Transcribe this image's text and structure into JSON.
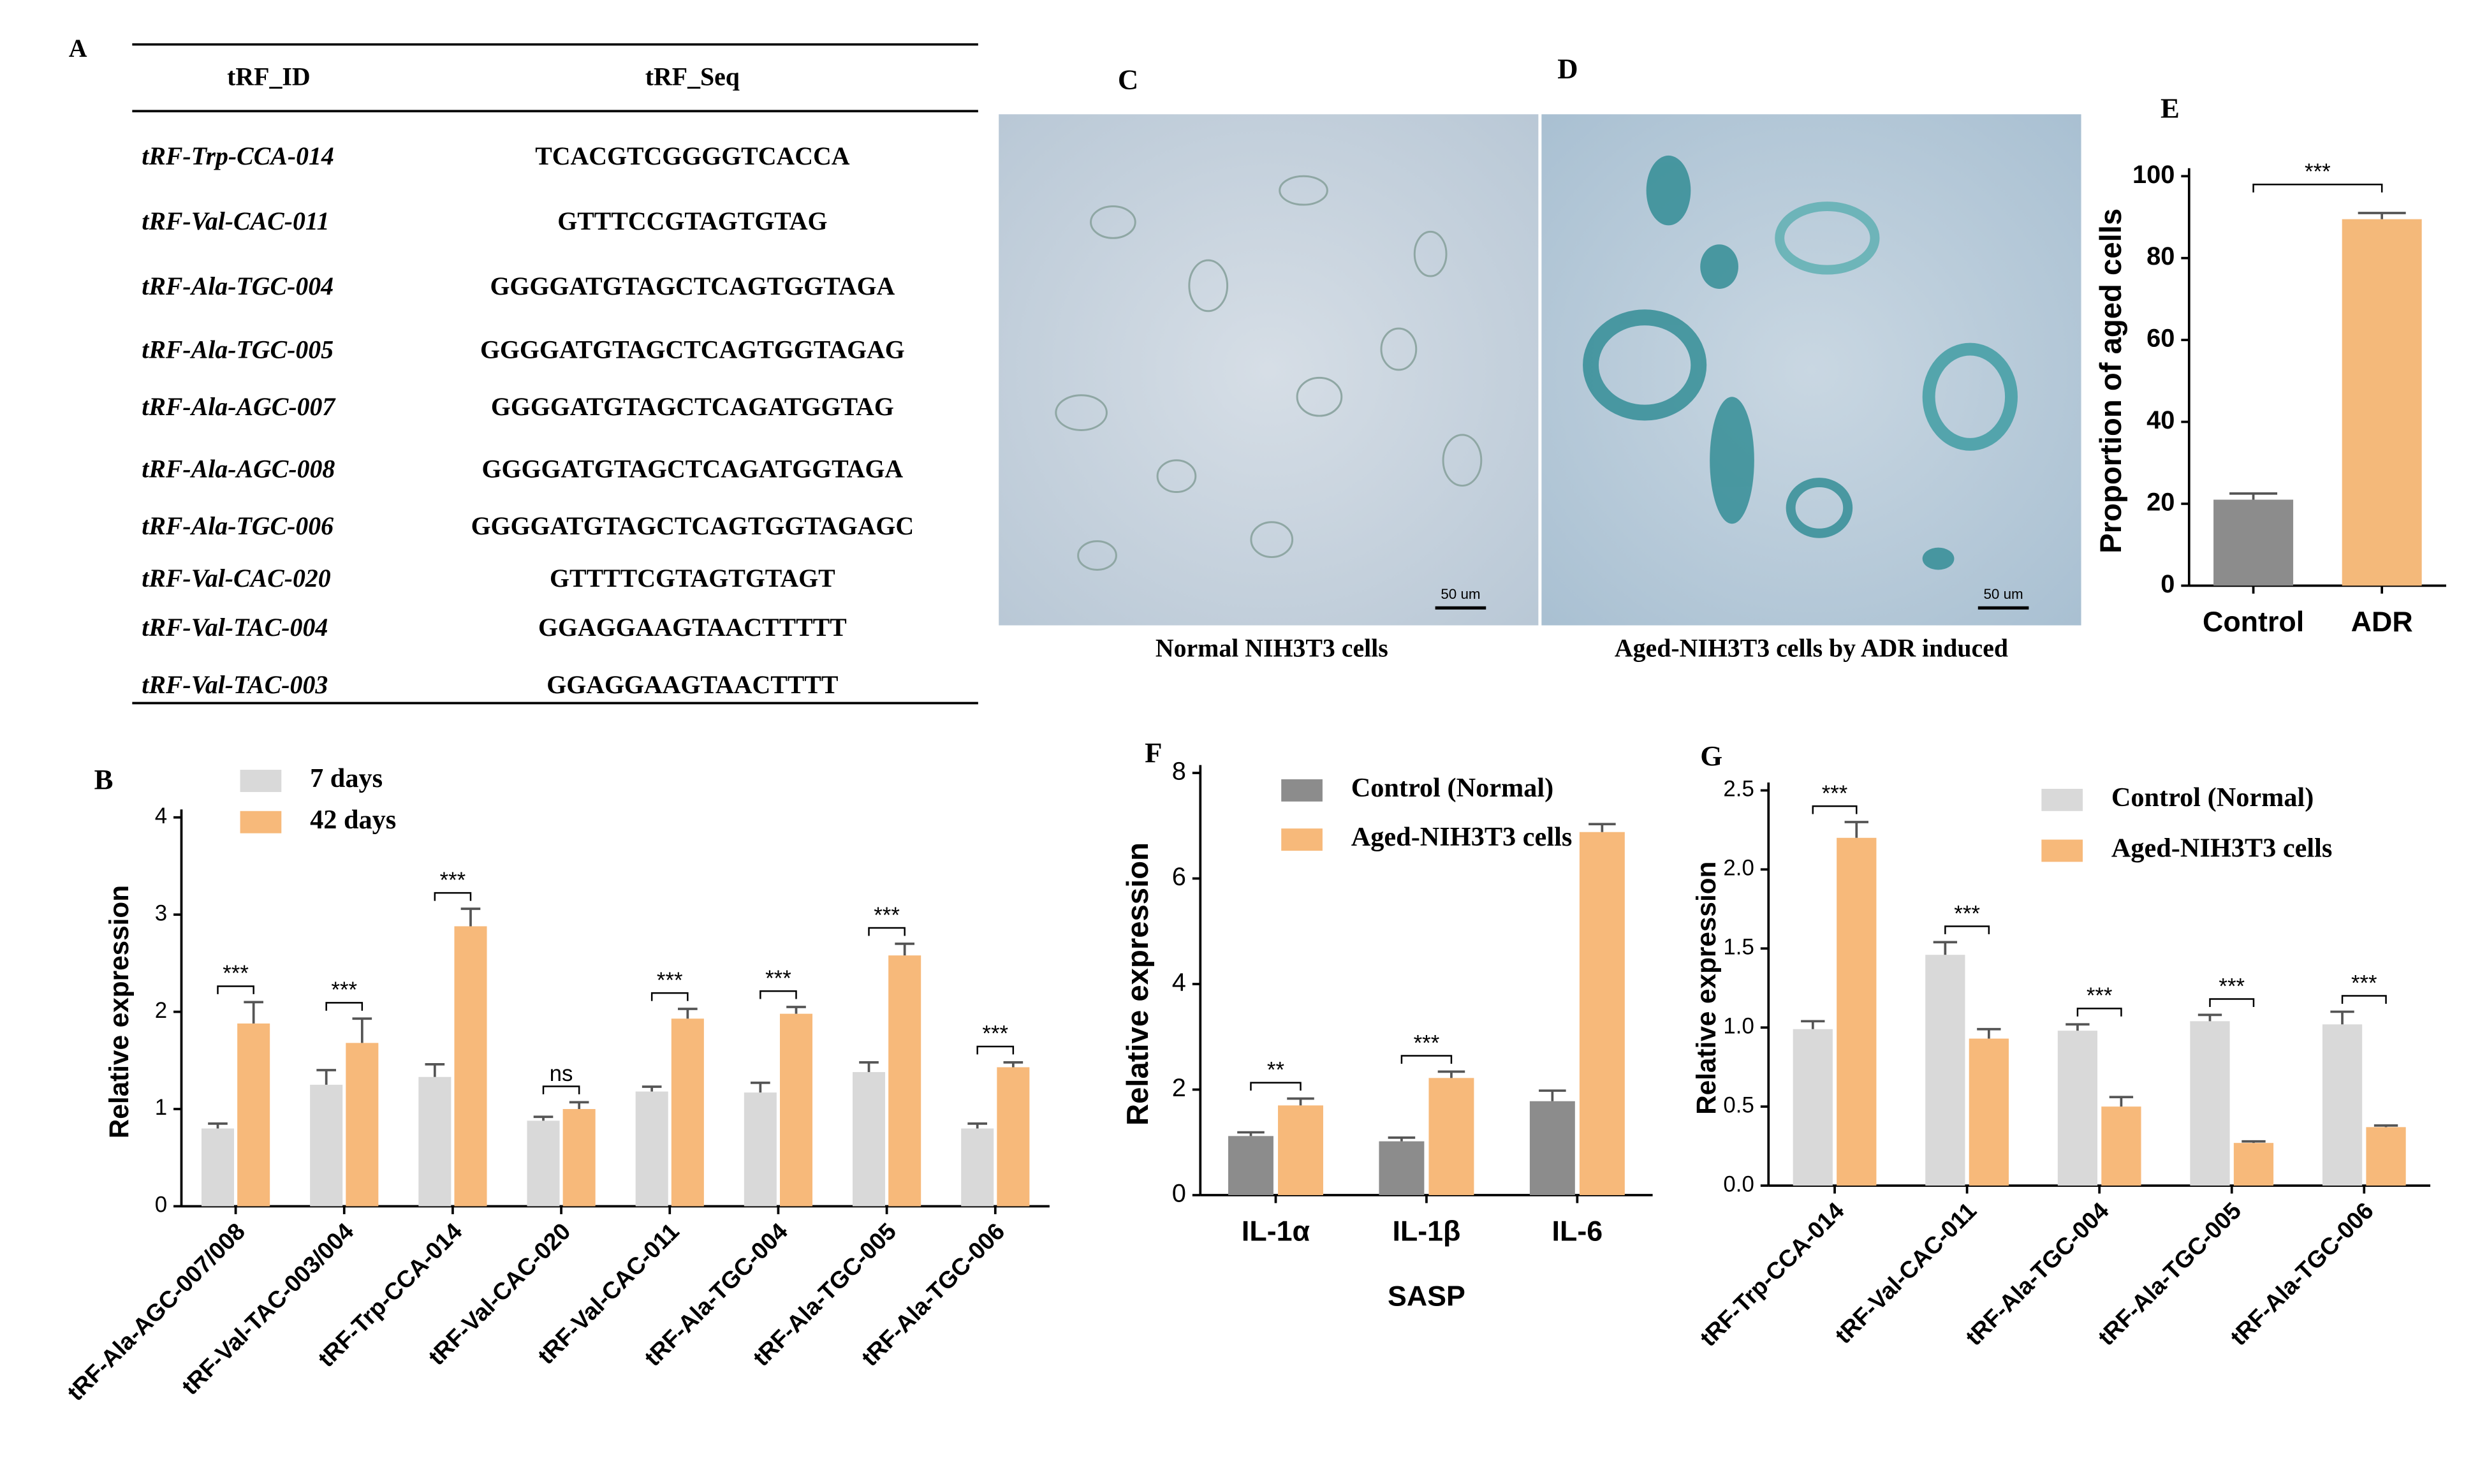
{
  "table": {
    "panel": "A",
    "header": [
      "tRF_ID",
      "tRF_Seq"
    ],
    "rows": [
      [
        "tRF-Trp-CCA-014",
        "TCACGTCGGGGTCACCA"
      ],
      [
        "tRF-Val-CAC-011",
        "GTTTCCGTAGTGTAG"
      ],
      [
        "tRF-Ala-TGC-004",
        "GGGGATGTAGCTCAGTGGTAGA"
      ],
      [
        "tRF-Ala-TGC-005",
        "GGGGATGTAGCTCAGTGGTAGAG"
      ],
      [
        "tRF-Ala-AGC-007",
        "GGGGATGTAGCTCAGATGGTAG"
      ],
      [
        "tRF-Ala-AGC-008",
        "GGGGATGTAGCTCAGATGGTAGA"
      ],
      [
        "tRF-Ala-TGC-006",
        "GGGGATGTAGCTCAGTGGTAGAGC"
      ],
      [
        "tRF-Val-CAC-020",
        "GTTTTCGTAGTGTAGT"
      ],
      [
        "tRF-Val-TAC-004",
        "GGAGGAAGTAACTTTTT"
      ],
      [
        "tRF-Val-TAC-003",
        "GGAGGAAGTAACTTTT"
      ]
    ]
  },
  "images": [
    {
      "panel": "C",
      "caption": "Normal NIH3T3 cells",
      "scale_bar": "50 um"
    },
    {
      "panel": "D",
      "caption": "Aged-NIH3T3 cells by ADR induced",
      "scale_bar": "50 um"
    }
  ],
  "chart_data": [
    {
      "type": "bar",
      "panel": "B",
      "ylabel": "Relative expression",
      "categories": [
        "tRF-Ala-AGC-007/008",
        "tRF-Val-TAC-003/004",
        "tRF-Trp-CCA-014",
        "tRF-Val-CAC-020",
        "tRF-Val-CAC-011",
        "tRF-Ala-TGC-004",
        "tRF-Ala-TGC-005",
        "tRF-Ala-TGC-006"
      ],
      "series": [
        {
          "name": "7 days",
          "color": "#d9d9d9",
          "values": [
            0.8,
            1.25,
            1.33,
            0.88,
            1.18,
            1.17,
            1.38,
            0.8
          ],
          "errors": [
            0.05,
            0.15,
            0.13,
            0.04,
            0.05,
            0.1,
            0.1,
            0.05
          ]
        },
        {
          "name": "42 days",
          "color": "#f7b97a",
          "values": [
            1.88,
            1.68,
            2.88,
            1.0,
            1.93,
            1.98,
            2.58,
            1.43
          ],
          "errors": [
            0.22,
            0.25,
            0.18,
            0.07,
            0.1,
            0.07,
            0.12,
            0.05
          ]
        }
      ],
      "significance": [
        "***",
        "***",
        "***",
        "ns",
        "***",
        "***",
        "***",
        "***"
      ],
      "ylim": [
        0,
        4
      ],
      "yticks": [
        0,
        1,
        2,
        3,
        4
      ]
    },
    {
      "type": "bar",
      "panel": "E",
      "ylabel": "Proportion of aged cells",
      "categories": [
        "Control",
        "ADR"
      ],
      "values": [
        21,
        89.5
      ],
      "errors": [
        1.5,
        1.5
      ],
      "colors": [
        "#8c8c8c",
        "#f4b97a"
      ],
      "significance": "***",
      "ylim": [
        0,
        100
      ],
      "yticks": [
        0,
        20,
        40,
        60,
        80,
        100
      ]
    },
    {
      "type": "bar",
      "panel": "F",
      "ylabel": "Relative expression",
      "xlabel": "SASP",
      "categories": [
        "IL-1α",
        "IL-1β",
        "IL-6"
      ],
      "series": [
        {
          "name": "Control (Normal)",
          "color": "#8c8c8c",
          "values": [
            1.12,
            1.02,
            1.78
          ],
          "errors": [
            0.07,
            0.07,
            0.2
          ]
        },
        {
          "name": "Aged-NIH3T3 cells",
          "color": "#f7b97a",
          "values": [
            1.7,
            2.22,
            6.88
          ],
          "errors": [
            0.13,
            0.12,
            0.15
          ]
        }
      ],
      "significance": [
        "**",
        "***",
        null
      ],
      "ylim": [
        0,
        8
      ],
      "yticks": [
        0,
        2,
        4,
        6,
        8
      ]
    },
    {
      "type": "bar",
      "panel": "G",
      "ylabel": "Relative expression",
      "categories": [
        "tRF-Trp-CCA-014",
        "tRF-Val-CAC-011",
        "tRF-Ala-TGC-004",
        "tRF-Ala-TGC-005",
        "tRF-Ala-TGC-006"
      ],
      "series": [
        {
          "name": "Control (Normal)",
          "color": "#d9d9d9",
          "values": [
            0.99,
            1.46,
            0.98,
            1.04,
            1.02
          ],
          "errors": [
            0.05,
            0.08,
            0.04,
            0.04,
            0.08
          ]
        },
        {
          "name": "Aged-NIH3T3 cells",
          "color": "#f7b97a",
          "values": [
            2.2,
            0.93,
            0.5,
            0.27,
            0.37
          ],
          "errors": [
            0.1,
            0.06,
            0.06,
            0.01,
            0.01
          ]
        }
      ],
      "significance": [
        "***",
        "***",
        "***",
        "***",
        "***"
      ],
      "ylim": [
        0,
        2.5
      ],
      "yticks": [
        {
          "value": 0,
          "label": "0.0"
        },
        0.5,
        {
          "value": 1,
          "label": "1.0"
        },
        1.5,
        {
          "value": 2,
          "label": "2.0"
        },
        2.5
      ]
    }
  ]
}
